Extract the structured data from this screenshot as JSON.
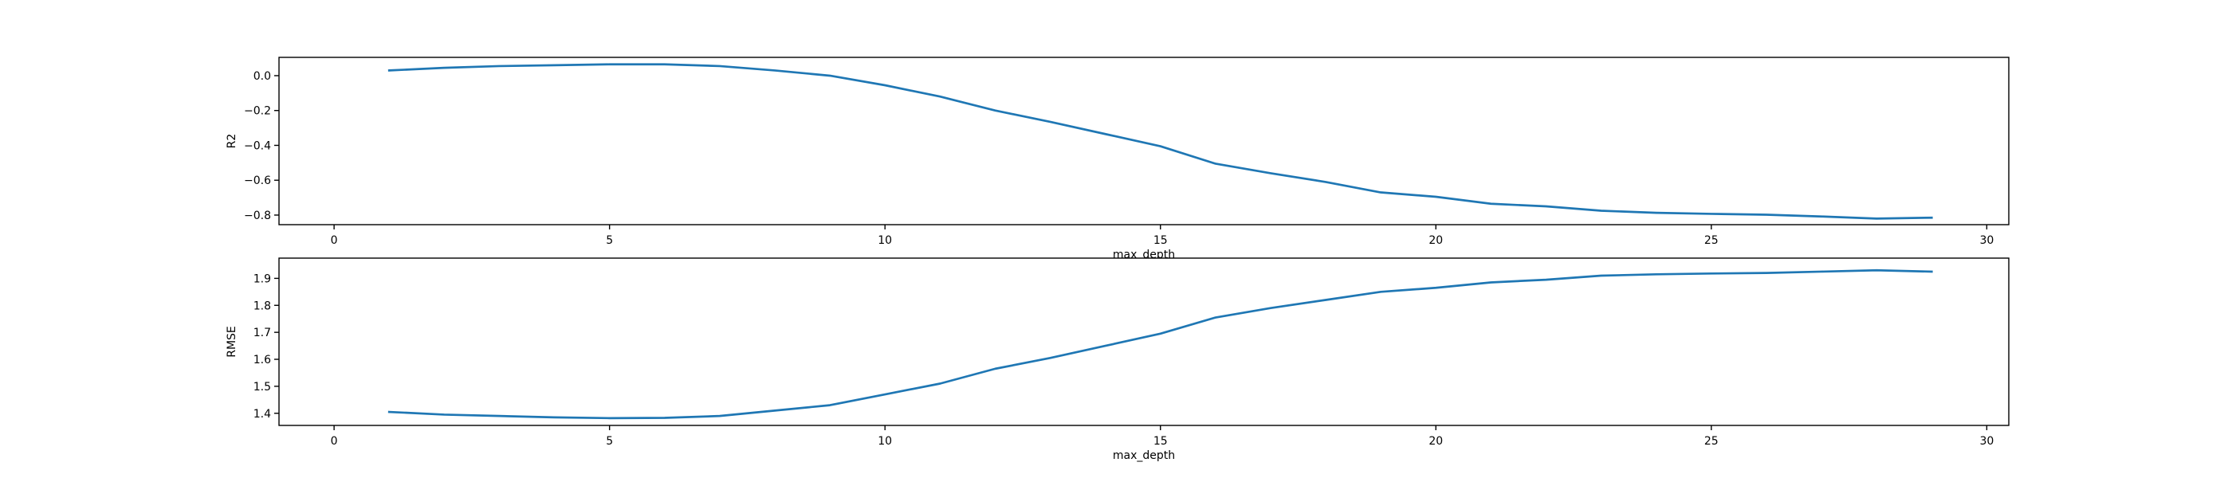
{
  "chart_data": [
    {
      "type": "line",
      "xlabel": "max_depth",
      "ylabel": "R2",
      "xlim": [
        -1,
        30.4
      ],
      "ylim": [
        -0.855,
        0.105
      ],
      "xticks": [
        0,
        5,
        10,
        15,
        20,
        25,
        30
      ],
      "xtick_labels": [
        "0",
        "5",
        "10",
        "15",
        "20",
        "25",
        "30"
      ],
      "yticks": [
        0.0,
        -0.2,
        -0.4,
        -0.6,
        -0.8
      ],
      "ytick_labels": [
        "0.0",
        "−0.2",
        "−0.4",
        "−0.6",
        "−0.8"
      ],
      "grid": false,
      "series": [
        {
          "color": "#1f77b4",
          "x": [
            1,
            2,
            3,
            4,
            5,
            6,
            7,
            8,
            9,
            10,
            11,
            12,
            13,
            14,
            15,
            16,
            17,
            18,
            19,
            20,
            21,
            22,
            23,
            24,
            25,
            26,
            27,
            28,
            29
          ],
          "values": [
            0.03,
            0.045,
            0.055,
            0.06,
            0.065,
            0.065,
            0.055,
            0.03,
            0.0,
            -0.055,
            -0.12,
            -0.2,
            -0.265,
            -0.335,
            -0.405,
            -0.505,
            -0.56,
            -0.61,
            -0.67,
            -0.695,
            -0.735,
            -0.75,
            -0.775,
            -0.787,
            -0.793,
            -0.798,
            -0.808,
            -0.82,
            -0.815
          ]
        }
      ]
    },
    {
      "type": "line",
      "xlabel": "max_depth",
      "ylabel": "RMSE",
      "xlim": [
        -1,
        30.4
      ],
      "ylim": [
        1.355,
        1.975
      ],
      "xticks": [
        0,
        5,
        10,
        15,
        20,
        25,
        30
      ],
      "xtick_labels": [
        "0",
        "5",
        "10",
        "15",
        "20",
        "25",
        "30"
      ],
      "yticks": [
        1.4,
        1.5,
        1.6,
        1.7,
        1.8,
        1.9
      ],
      "ytick_labels": [
        "1.4",
        "1.5",
        "1.6",
        "1.7",
        "1.8",
        "1.9"
      ],
      "grid": false,
      "series": [
        {
          "color": "#1f77b4",
          "x": [
            1,
            2,
            3,
            4,
            5,
            6,
            7,
            8,
            9,
            10,
            11,
            12,
            13,
            14,
            15,
            16,
            17,
            18,
            19,
            20,
            21,
            22,
            23,
            24,
            25,
            26,
            27,
            28,
            29
          ],
          "values": [
            1.405,
            1.395,
            1.39,
            1.385,
            1.382,
            1.383,
            1.39,
            1.41,
            1.43,
            1.47,
            1.51,
            1.565,
            1.605,
            1.65,
            1.695,
            1.755,
            1.79,
            1.82,
            1.85,
            1.865,
            1.885,
            1.895,
            1.91,
            1.915,
            1.918,
            1.92,
            1.925,
            1.93,
            1.925
          ]
        }
      ]
    }
  ]
}
